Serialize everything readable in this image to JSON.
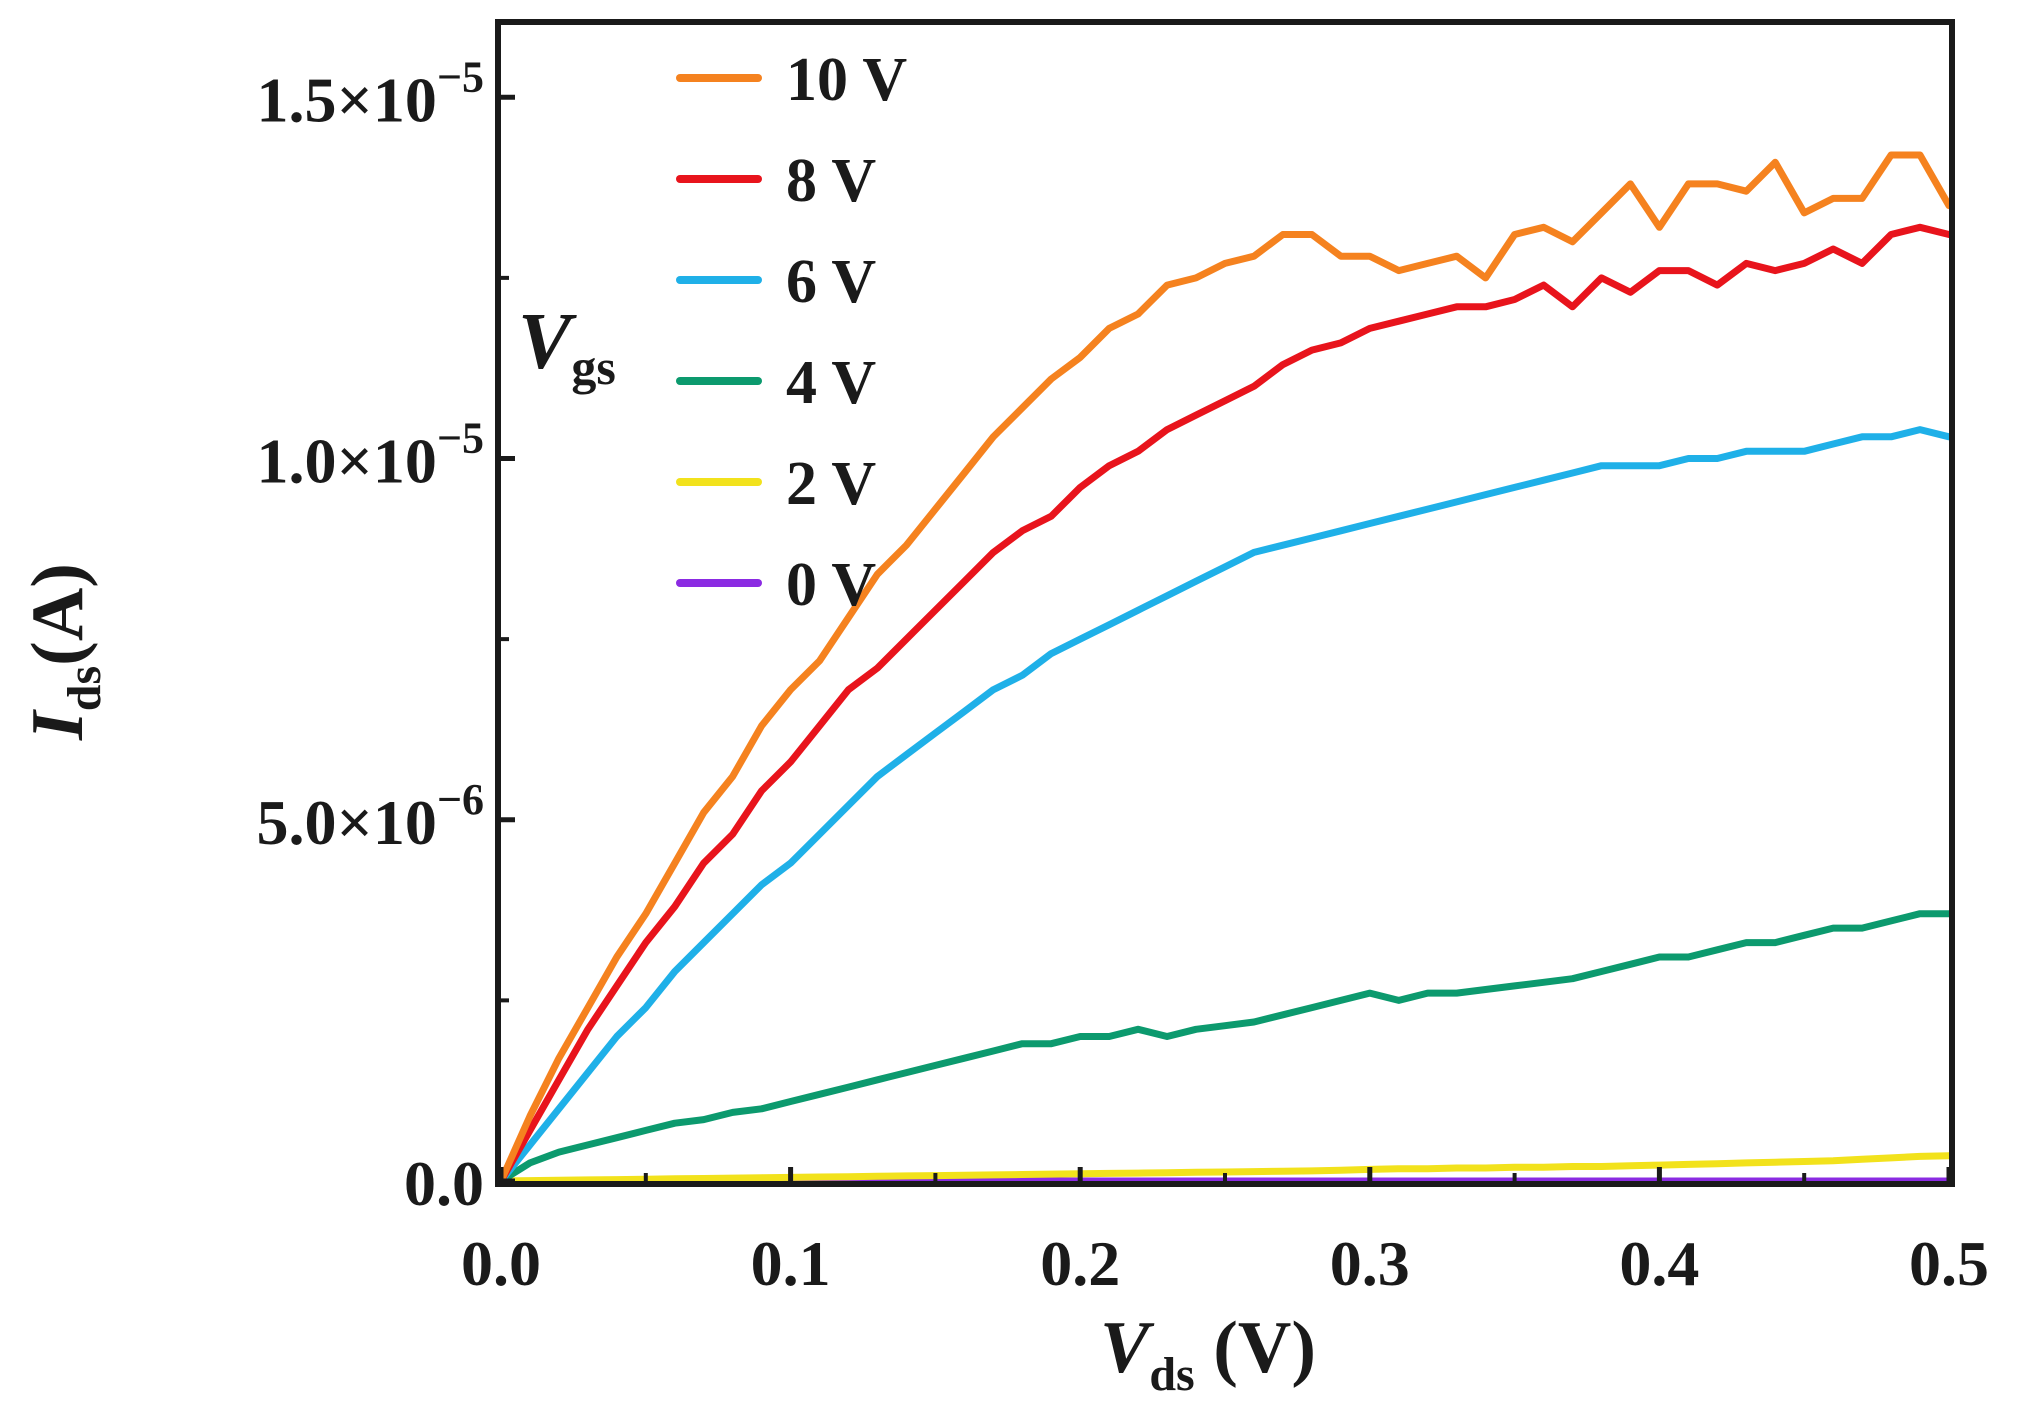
{
  "chart_data": {
    "type": "line",
    "title": "",
    "xlabel": {
      "main": "V",
      "sub": "ds",
      "suffix": " (V)"
    },
    "ylabel": {
      "main": "I",
      "sub": "ds",
      "suffix": "(A)"
    },
    "xlim": [
      0,
      0.5
    ],
    "ylim": [
      0,
      1.6e-05
    ],
    "x_ticks": [
      {
        "value": 0.0,
        "label": "0.0"
      },
      {
        "value": 0.1,
        "label": "0.1"
      },
      {
        "value": 0.2,
        "label": "0.2"
      },
      {
        "value": 0.3,
        "label": "0.3"
      },
      {
        "value": 0.4,
        "label": "0.4"
      },
      {
        "value": 0.5,
        "label": "0.5"
      }
    ],
    "y_ticks": [
      {
        "value": 0,
        "label": "0.0",
        "mantissa": "",
        "exponent": ""
      },
      {
        "value": 5e-06,
        "label": "5.0×10−6",
        "mantissa": "5.0×10",
        "exponent": "−6"
      },
      {
        "value": 1e-05,
        "label": "1.0×10−5",
        "mantissa": "1.0×10",
        "exponent": "−5"
      },
      {
        "value": 1.5e-05,
        "label": "1.5×10−5",
        "mantissa": "1.5×10",
        "exponent": "−5"
      }
    ],
    "legend": {
      "title_main": "V",
      "title_sub": "gs",
      "position": "top-left"
    },
    "x": [
      0,
      0.01,
      0.02,
      0.03,
      0.04,
      0.05,
      0.06,
      0.07,
      0.08,
      0.09,
      0.1,
      0.11,
      0.12,
      0.13,
      0.14,
      0.15,
      0.16,
      0.17,
      0.18,
      0.19,
      0.2,
      0.21,
      0.22,
      0.23,
      0.24,
      0.25,
      0.26,
      0.27,
      0.28,
      0.29,
      0.3,
      0.31,
      0.32,
      0.33,
      0.34,
      0.35,
      0.36,
      0.37,
      0.38,
      0.39,
      0.4,
      0.41,
      0.42,
      0.43,
      0.44,
      0.45,
      0.46,
      0.47,
      0.48,
      0.49,
      0.5
    ],
    "series": [
      {
        "name": "10 V",
        "color": "#f5821f",
        "values": [
          0,
          9e-07,
          1.7e-06,
          2.4e-06,
          3.1e-06,
          3.7e-06,
          4.4e-06,
          5.1e-06,
          5.6e-06,
          6.3e-06,
          6.8e-06,
          7.2e-06,
          7.8e-06,
          8.4e-06,
          8.8e-06,
          9.3e-06,
          9.8e-06,
          1.03e-05,
          1.07e-05,
          1.11e-05,
          1.14e-05,
          1.18e-05,
          1.2e-05,
          1.24e-05,
          1.25e-05,
          1.27e-05,
          1.28e-05,
          1.31e-05,
          1.31e-05,
          1.28e-05,
          1.28e-05,
          1.26e-05,
          1.27e-05,
          1.28e-05,
          1.25e-05,
          1.31e-05,
          1.32e-05,
          1.3e-05,
          1.34e-05,
          1.38e-05,
          1.32e-05,
          1.38e-05,
          1.38e-05,
          1.37e-05,
          1.41e-05,
          1.34e-05,
          1.36e-05,
          1.36e-05,
          1.42e-05,
          1.42e-05,
          1.35e-05
        ]
      },
      {
        "name": "8 V",
        "color": "#e8141c",
        "values": [
          0,
          7e-07,
          1.4e-06,
          2.1e-06,
          2.7e-06,
          3.3e-06,
          3.8e-06,
          4.4e-06,
          4.8e-06,
          5.4e-06,
          5.8e-06,
          6.3e-06,
          6.8e-06,
          7.1e-06,
          7.5e-06,
          7.9e-06,
          8.3e-06,
          8.7e-06,
          9e-06,
          9.2e-06,
          9.6e-06,
          9.9e-06,
          1.01e-05,
          1.04e-05,
          1.06e-05,
          1.08e-05,
          1.1e-05,
          1.13e-05,
          1.15e-05,
          1.16e-05,
          1.18e-05,
          1.19e-05,
          1.2e-05,
          1.21e-05,
          1.21e-05,
          1.22e-05,
          1.24e-05,
          1.21e-05,
          1.25e-05,
          1.23e-05,
          1.26e-05,
          1.26e-05,
          1.24e-05,
          1.27e-05,
          1.26e-05,
          1.27e-05,
          1.29e-05,
          1.27e-05,
          1.31e-05,
          1.32e-05,
          1.31e-05
        ]
      },
      {
        "name": "6 V",
        "color": "#1fb0e8",
        "values": [
          0,
          5e-07,
          1e-06,
          1.5e-06,
          2e-06,
          2.4e-06,
          2.9e-06,
          3.3e-06,
          3.7e-06,
          4.1e-06,
          4.4e-06,
          4.8e-06,
          5.2e-06,
          5.6e-06,
          5.9e-06,
          6.2e-06,
          6.5e-06,
          6.8e-06,
          7e-06,
          7.3e-06,
          7.5e-06,
          7.7e-06,
          7.9e-06,
          8.1e-06,
          8.3e-06,
          8.5e-06,
          8.7e-06,
          8.8e-06,
          8.9e-06,
          9e-06,
          9.1e-06,
          9.2e-06,
          9.3e-06,
          9.4e-06,
          9.5e-06,
          9.6e-06,
          9.7e-06,
          9.8e-06,
          9.9e-06,
          9.9e-06,
          9.9e-06,
          1e-05,
          1e-05,
          1.01e-05,
          1.01e-05,
          1.01e-05,
          1.02e-05,
          1.03e-05,
          1.03e-05,
          1.04e-05,
          1.03e-05
        ]
      },
      {
        "name": "4 V",
        "color": "#0c9a6e",
        "values": [
          0,
          2.5e-07,
          4e-07,
          5e-07,
          6e-07,
          7e-07,
          8e-07,
          8.5e-07,
          9.5e-07,
          1e-06,
          1.1e-06,
          1.2e-06,
          1.3e-06,
          1.4e-06,
          1.5e-06,
          1.6e-06,
          1.7e-06,
          1.8e-06,
          1.9e-06,
          1.9e-06,
          2e-06,
          2e-06,
          2.1e-06,
          2e-06,
          2.1e-06,
          2.15e-06,
          2.2e-06,
          2.3e-06,
          2.4e-06,
          2.5e-06,
          2.6e-06,
          2.5e-06,
          2.6e-06,
          2.6e-06,
          2.65e-06,
          2.7e-06,
          2.75e-06,
          2.8e-06,
          2.9e-06,
          3e-06,
          3.1e-06,
          3.1e-06,
          3.2e-06,
          3.3e-06,
          3.3e-06,
          3.4e-06,
          3.5e-06,
          3.5e-06,
          3.6e-06,
          3.7e-06,
          3.7e-06
        ]
      },
      {
        "name": "2 V",
        "color": "#f2e21c",
        "values": [
          0,
          5e-09,
          1e-08,
          1.5e-08,
          2e-08,
          2.5e-08,
          3e-08,
          3.5e-08,
          4e-08,
          4.5e-08,
          5e-08,
          5.5e-08,
          6e-08,
          6.5e-08,
          7e-08,
          7.5e-08,
          8e-08,
          8.5e-08,
          9e-08,
          9.5e-08,
          1e-07,
          1.05e-07,
          1.1e-07,
          1.15e-07,
          1.2e-07,
          1.25e-07,
          1.3e-07,
          1.35e-07,
          1.4e-07,
          1.5e-07,
          1.6e-07,
          1.7e-07,
          1.7e-07,
          1.8e-07,
          1.8e-07,
          1.9e-07,
          1.9e-07,
          2e-07,
          2e-07,
          2.1e-07,
          2.2e-07,
          2.3e-07,
          2.4e-07,
          2.5e-07,
          2.6e-07,
          2.7e-07,
          2.8e-07,
          3e-07,
          3.2e-07,
          3.4e-07,
          3.5e-07
        ]
      },
      {
        "name": "0 V",
        "color": "#8b2be2",
        "values": [
          0,
          0,
          0,
          0,
          0,
          0,
          0,
          0,
          0,
          0,
          0,
          0,
          0,
          0,
          0,
          0,
          0,
          0,
          0,
          0,
          0,
          0,
          0,
          0,
          0,
          0,
          0,
          0,
          0,
          0,
          0,
          0,
          0,
          0,
          0,
          0,
          0,
          0,
          0,
          0,
          0,
          0,
          0,
          0,
          0,
          0,
          0,
          0,
          0,
          0,
          0
        ]
      }
    ]
  }
}
